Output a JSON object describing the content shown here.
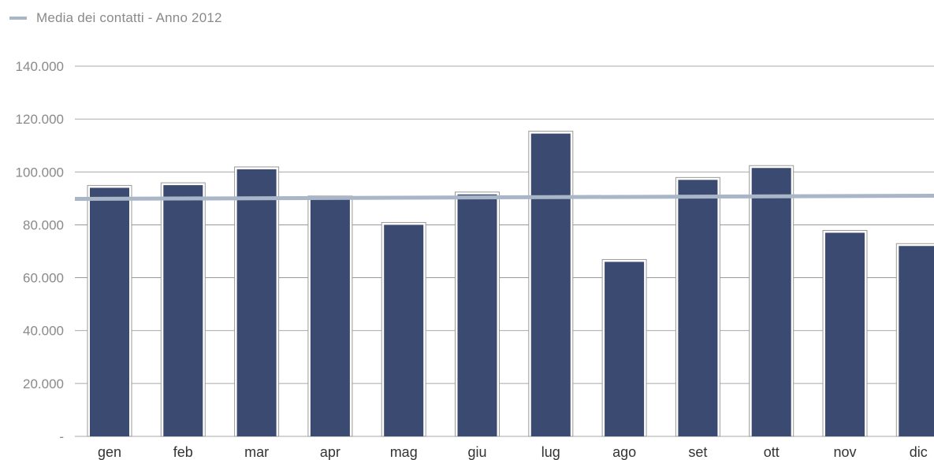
{
  "chart_data": {
    "type": "bar",
    "title": "",
    "xlabel": "",
    "ylabel": "",
    "categories": [
      "gen",
      "feb",
      "mar",
      "apr",
      "mag",
      "giu",
      "lug",
      "ago",
      "set",
      "ott",
      "nov",
      "dic"
    ],
    "series": [
      {
        "values": [
          94000,
          95000,
          101000,
          90000,
          80000,
          91500,
          114500,
          66000,
          97000,
          101500,
          77000,
          72000
        ]
      }
    ],
    "average_line": {
      "name": "Media dei contatti - Anno 2012",
      "start_value": 89800,
      "end_value": 91000
    },
    "ylim": [
      0,
      140000
    ],
    "yticks": [
      0,
      20000,
      40000,
      60000,
      80000,
      100000,
      120000,
      140000
    ],
    "ytick_labels": [
      "-",
      "20.000",
      "40.000",
      "60.000",
      "80.000",
      "100.000",
      "120.000",
      "140.000"
    ],
    "grid": true,
    "legend_position": "top-left",
    "colors": {
      "bar": "#3b4a70",
      "bar_outline": "#9a9a9a",
      "average_line": "#a9b6c8",
      "grid": "#8c8c8c"
    }
  }
}
